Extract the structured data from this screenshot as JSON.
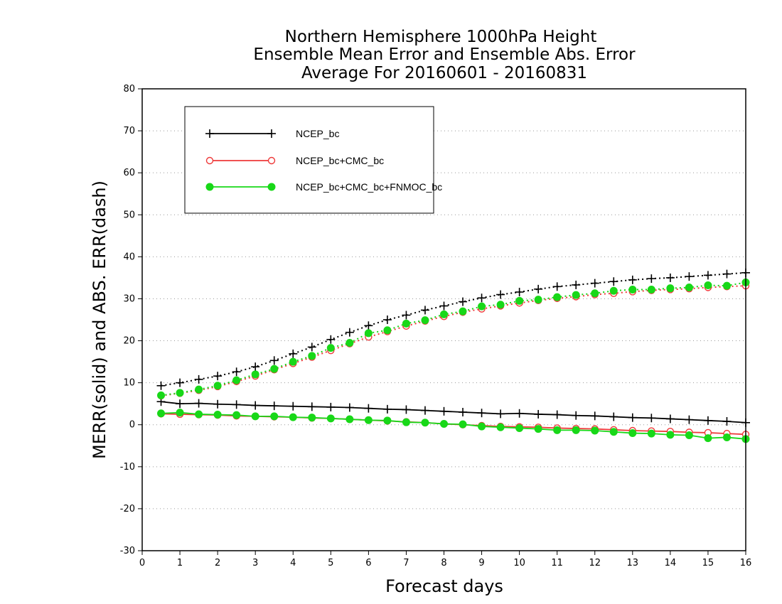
{
  "chart_data": {
    "type": "line",
    "title": [
      "Northern Hemisphere 1000hPa Height",
      "Ensemble Mean Error and Ensemble Abs. Error",
      "Average For 20160601 - 20160831"
    ],
    "xlabel": "Forecast days",
    "ylabel": "MERR(solid) and ABS. ERR(dash)",
    "xlim": [
      0,
      16
    ],
    "ylim": [
      -30,
      80
    ],
    "xticks": [
      0,
      1,
      2,
      3,
      4,
      5,
      6,
      7,
      8,
      9,
      10,
      11,
      12,
      13,
      14,
      15,
      16
    ],
    "yticks": [
      -30,
      -20,
      -10,
      0,
      10,
      20,
      30,
      40,
      50,
      60,
      70,
      80
    ],
    "grid": "horizontal dotted",
    "legend_position": "top-left",
    "x": [
      0.5,
      1,
      1.5,
      2,
      2.5,
      3,
      3.5,
      4,
      4.5,
      5,
      5.5,
      6,
      6.5,
      7,
      7.5,
      8,
      8.5,
      9,
      9.5,
      10,
      10.5,
      11,
      11.5,
      12,
      12.5,
      13,
      13.5,
      14,
      14.5,
      15,
      15.5,
      16
    ],
    "series": [
      {
        "name": "NCEP_bc",
        "color": "#000000",
        "marker": "plus",
        "merr": [
          5.5,
          5.0,
          5.1,
          4.9,
          4.8,
          4.6,
          4.5,
          4.4,
          4.3,
          4.2,
          4.1,
          3.9,
          3.7,
          3.6,
          3.4,
          3.2,
          3.0,
          2.8,
          2.6,
          2.7,
          2.5,
          2.4,
          2.2,
          2.1,
          1.9,
          1.7,
          1.6,
          1.4,
          1.2,
          1.0,
          0.8,
          0.5
        ],
        "abs_err": [
          9.3,
          10.0,
          10.8,
          11.6,
          12.6,
          13.8,
          15.3,
          16.9,
          18.5,
          20.3,
          22.0,
          23.6,
          25.0,
          26.1,
          27.3,
          28.3,
          29.3,
          30.2,
          31.0,
          31.6,
          32.3,
          32.9,
          33.3,
          33.7,
          34.1,
          34.5,
          34.8,
          35.0,
          35.3,
          35.6,
          35.9,
          36.2
        ]
      },
      {
        "name": "NCEP_bc+CMC_bc",
        "color": "#ee3a3a",
        "marker": "open-circle",
        "merr": [
          2.6,
          2.5,
          2.4,
          2.3,
          2.1,
          2.0,
          1.9,
          1.8,
          1.6,
          1.5,
          1.3,
          1.1,
          0.9,
          0.7,
          0.5,
          0.2,
          0.0,
          -0.2,
          -0.4,
          -0.5,
          -0.6,
          -0.8,
          -0.9,
          -1.0,
          -1.2,
          -1.4,
          -1.5,
          -1.6,
          -1.8,
          -1.9,
          -2.1,
          -2.3
        ],
        "abs_err": [
          6.9,
          7.5,
          8.2,
          9.1,
          10.3,
          11.6,
          13.1,
          14.6,
          16.1,
          17.7,
          19.3,
          20.9,
          22.2,
          23.5,
          24.7,
          25.8,
          26.8,
          27.6,
          28.3,
          29.0,
          29.6,
          30.1,
          30.5,
          31.0,
          31.3,
          31.7,
          32.0,
          32.2,
          32.4,
          32.7,
          32.9,
          33.1
        ]
      },
      {
        "name": "NCEP_bc+CMC_bc+FNMOC_bc",
        "color": "#18d818",
        "marker": "filled-circle",
        "merr": [
          2.7,
          2.9,
          2.5,
          2.4,
          2.3,
          2.0,
          2.0,
          1.8,
          1.7,
          1.5,
          1.3,
          1.1,
          1.0,
          0.6,
          0.5,
          0.2,
          0.1,
          -0.4,
          -0.6,
          -0.8,
          -1.0,
          -1.3,
          -1.3,
          -1.4,
          -1.7,
          -2.0,
          -2.1,
          -2.4,
          -2.5,
          -3.2,
          -3.0,
          -3.4
        ],
        "abs_err": [
          7.0,
          7.6,
          8.4,
          9.3,
          10.6,
          12.0,
          13.3,
          15.0,
          16.4,
          18.3,
          19.5,
          21.8,
          22.5,
          24.1,
          24.9,
          26.3,
          27.0,
          28.2,
          28.6,
          29.5,
          29.8,
          30.4,
          30.9,
          31.3,
          31.9,
          32.2,
          32.2,
          32.5,
          32.7,
          33.2,
          33.1,
          33.9
        ]
      }
    ]
  }
}
